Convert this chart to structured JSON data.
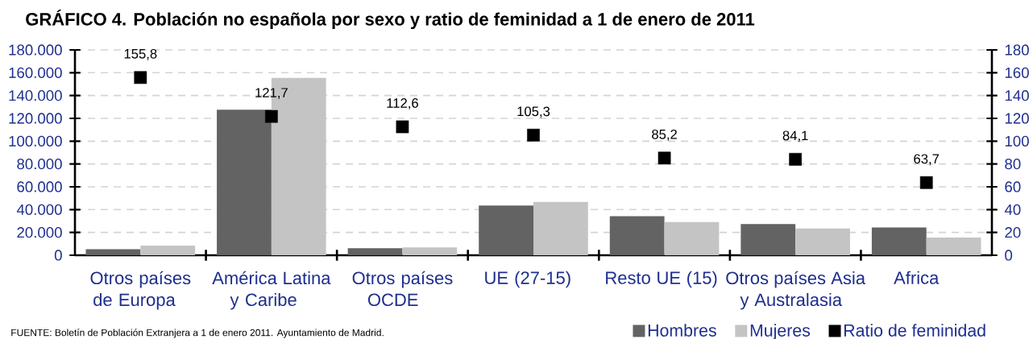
{
  "chart_data": {
    "type": "bar",
    "title": "GRÁFICO 4.  Población no española por sexo y ratio de feminidad a 1 de enero de 2011",
    "categories": [
      "Otros países de Europa",
      "América Latina y Caribe",
      "Otros países OCDE",
      "UE (27-15)",
      "Resto UE (15)",
      "Otros países Asia y Australasia",
      "Africa"
    ],
    "series": [
      {
        "name": "Hombres",
        "color": "#636363",
        "values": [
          5200,
          127500,
          6100,
          43500,
          34200,
          27300,
          24300
        ]
      },
      {
        "name": "Mujeres",
        "color": "#c4c4c4",
        "values": [
          8400,
          155400,
          6900,
          46800,
          29100,
          23400,
          15600
        ]
      },
      {
        "name": "Ratio de feminidad",
        "type": "scatter",
        "axis": "y2",
        "color": "#000000",
        "marker": "square",
        "values": [
          155.8,
          121.7,
          112.6,
          105.3,
          85.2,
          84.1,
          63.7
        ],
        "value_labels": [
          "155,8",
          "121,7",
          "112,6",
          "105,3",
          "85,2",
          "84,1",
          "63,7"
        ]
      }
    ],
    "ylim": [
      0,
      180000
    ],
    "yticks": [
      0,
      {
        "value": 20000,
        "label": "20.000"
      },
      {
        "value": 40000,
        "label": "40.000"
      },
      {
        "value": 60000,
        "label": "60.000"
      },
      {
        "value": 80000,
        "label": "80.000"
      },
      {
        "value": 100000,
        "label": "100.000"
      },
      {
        "value": 120000,
        "label": "120.000"
      },
      {
        "value": 140000,
        "label": "140.000"
      },
      {
        "value": 160000,
        "label": "160.000"
      },
      {
        "value": 180000,
        "label": "180.000"
      }
    ],
    "y2lim": [
      0,
      180
    ],
    "y2ticks": [
      0,
      20,
      40,
      60,
      80,
      100,
      120,
      140,
      160,
      180
    ],
    "grid": "y",
    "legend": "bottom right",
    "annotations": [
      "FUENTE: Boletín de Población Extranjera a 1 de enero 2011. Ayuntamiento de Madrid."
    ]
  }
}
